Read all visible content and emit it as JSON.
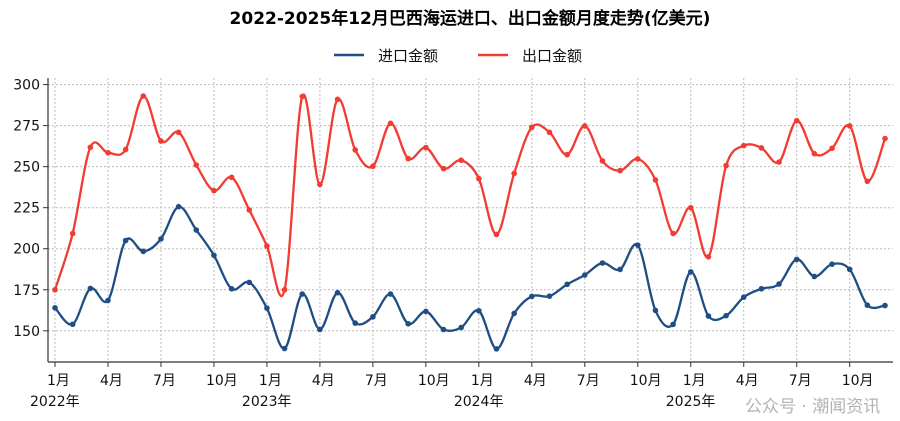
{
  "watermark": "公众号 · 潮闻资讯",
  "chart_data": {
    "type": "line",
    "title": "2022-2025年12月巴西海运进口、出口金额月度走势(亿美元)",
    "xlabel": "",
    "ylabel": "",
    "ylim": [
      131,
      304
    ],
    "yticks": [
      150,
      175,
      200,
      225,
      250,
      275,
      300
    ],
    "grid": true,
    "legend_position": "top-center",
    "x_tick_labels": [
      {
        "index": 0,
        "label": "1月",
        "year": "2022年"
      },
      {
        "index": 3,
        "label": "4月"
      },
      {
        "index": 6,
        "label": "7月"
      },
      {
        "index": 9,
        "label": "10月"
      },
      {
        "index": 12,
        "label": "1月",
        "year": "2023年"
      },
      {
        "index": 15,
        "label": "4月"
      },
      {
        "index": 18,
        "label": "7月"
      },
      {
        "index": 21,
        "label": "10月"
      },
      {
        "index": 24,
        "label": "1月",
        "year": "2024年"
      },
      {
        "index": 27,
        "label": "4月"
      },
      {
        "index": 30,
        "label": "7月"
      },
      {
        "index": 33,
        "label": "10月"
      },
      {
        "index": 36,
        "label": "1月",
        "year": "2025年"
      },
      {
        "index": 39,
        "label": "4月"
      },
      {
        "index": 42,
        "label": "7月"
      },
      {
        "index": 45,
        "label": "10月"
      }
    ],
    "x": [
      "2022-01",
      "2022-02",
      "2022-03",
      "2022-04",
      "2022-05",
      "2022-06",
      "2022-07",
      "2022-08",
      "2022-09",
      "2022-10",
      "2022-11",
      "2022-12",
      "2023-01",
      "2023-02",
      "2023-03",
      "2023-04",
      "2023-05",
      "2023-06",
      "2023-07",
      "2023-08",
      "2023-09",
      "2023-10",
      "2023-11",
      "2023-12",
      "2024-01",
      "2024-02",
      "2024-03",
      "2024-04",
      "2024-05",
      "2024-06",
      "2024-07",
      "2024-08",
      "2024-09",
      "2024-10",
      "2024-11",
      "2024-12",
      "2025-01",
      "2025-02",
      "2025-03",
      "2025-04",
      "2025-05",
      "2025-06",
      "2025-07",
      "2025-08",
      "2025-09",
      "2025-10",
      "2025-11",
      "2025-12"
    ],
    "series": [
      {
        "name": "进口金额",
        "color": "#1f4e85",
        "values": [
          164.0,
          154.0,
          175.8,
          168.5,
          205.0,
          198.4,
          206.0,
          225.6,
          211.4,
          196.0,
          175.6,
          179.5,
          163.8,
          139.2,
          172.4,
          150.8,
          173.2,
          154.7,
          158.5,
          172.4,
          154.3,
          161.8,
          150.8,
          152.0,
          162.2,
          139.0,
          160.6,
          171.0,
          171.1,
          178.3,
          184.0,
          191.3,
          187.4,
          202.2,
          162.4,
          153.9,
          185.9,
          159.0,
          159.2,
          170.5,
          175.6,
          178.5,
          193.5,
          183.1,
          190.6,
          187.4,
          165.6,
          165.4
        ]
      },
      {
        "name": "出口金额",
        "color": "#f23b32",
        "values": [
          175.0,
          209.3,
          261.8,
          258.5,
          260.4,
          293.0,
          265.6,
          270.9,
          251.0,
          235.4,
          243.5,
          223.6,
          201.6,
          175.0,
          292.7,
          239.2,
          291.0,
          260.2,
          250.2,
          276.4,
          254.9,
          261.6,
          248.8,
          253.9,
          242.7,
          208.7,
          245.9,
          274.0,
          270.9,
          257.3,
          274.8,
          253.5,
          247.6,
          254.7,
          241.9,
          209.3,
          225.0,
          195.1,
          250.6,
          262.8,
          261.4,
          252.8,
          278.0,
          257.9,
          261.2,
          274.8,
          241.1,
          267.1
        ]
      }
    ]
  }
}
